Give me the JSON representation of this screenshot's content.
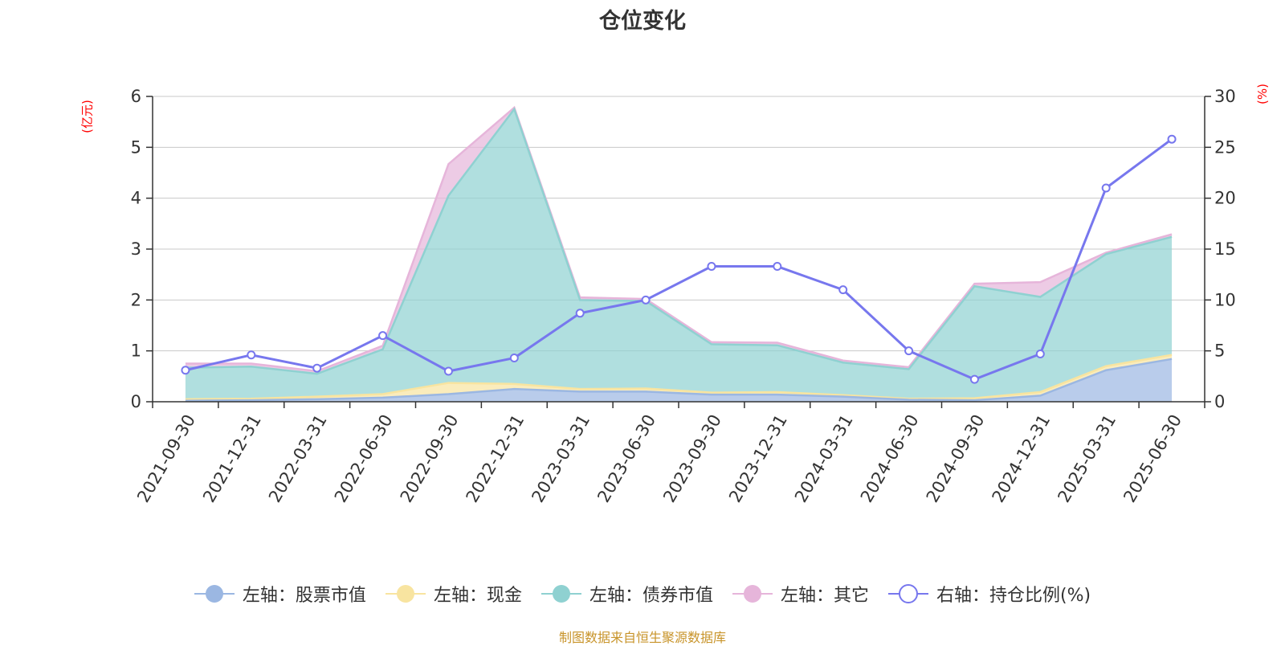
{
  "title": "仓位变化",
  "source_note": "制图数据来自恒生聚源数据库",
  "colors": {
    "stock": "#9bb7e2",
    "cash": "#f8e4a0",
    "bond": "#8fd1d1",
    "other": "#e6b5da",
    "ratio": "#7777ee",
    "axis_label": "#ff0000",
    "grid": "#c8c8c8"
  },
  "chart_data": {
    "type": "area",
    "title": "仓位变化",
    "ylabel_left": "(亿元)",
    "ylabel_right": "(%)",
    "categories": [
      "2021-09-30",
      "2021-12-31",
      "2022-03-31",
      "2022-06-30",
      "2022-09-30",
      "2022-12-31",
      "2023-03-31",
      "2023-06-30",
      "2023-09-30",
      "2023-12-31",
      "2024-03-31",
      "2024-06-30",
      "2024-09-30",
      "2024-12-31",
      "2025-03-31",
      "2025-06-30"
    ],
    "ylim_left": [
      0,
      6
    ],
    "yticks_left": [
      "0",
      "1",
      "2",
      "3",
      "4",
      "5",
      "6"
    ],
    "ylim_right": [
      0,
      30
    ],
    "yticks_right": [
      "0",
      "5",
      "10",
      "15",
      "20",
      "25",
      "30"
    ],
    "grid": true,
    "legend_position": "bottom",
    "series": [
      {
        "name": "左轴：股票市值",
        "axis": "left",
        "stacked": true,
        "values": [
          0.02,
          0.03,
          0.05,
          0.08,
          0.15,
          0.25,
          0.2,
          0.2,
          0.14,
          0.14,
          0.1,
          0.04,
          0.03,
          0.12,
          0.62,
          0.84
        ]
      },
      {
        "name": "左轴：现金",
        "axis": "left",
        "stacked": true,
        "values": [
          0.03,
          0.03,
          0.05,
          0.07,
          0.22,
          0.1,
          0.05,
          0.06,
          0.04,
          0.05,
          0.03,
          0.02,
          0.04,
          0.07,
          0.08,
          0.08
        ]
      },
      {
        "name": "左轴：债券市值",
        "axis": "left",
        "stacked": true,
        "values": [
          0.62,
          0.63,
          0.45,
          0.88,
          3.68,
          5.4,
          1.75,
          1.72,
          0.95,
          0.92,
          0.64,
          0.58,
          2.2,
          1.87,
          2.2,
          2.32
        ]
      },
      {
        "name": "左轴：其它",
        "axis": "left",
        "stacked": true,
        "values": [
          0.08,
          0.06,
          0.05,
          0.07,
          0.62,
          0.03,
          0.05,
          0.04,
          0.04,
          0.05,
          0.04,
          0.04,
          0.05,
          0.29,
          0.03,
          0.05
        ]
      },
      {
        "name": "右轴：持仓比例(%)",
        "axis": "right",
        "stacked": false,
        "values": [
          3.1,
          4.6,
          3.3,
          6.5,
          3.0,
          4.3,
          8.7,
          10.0,
          13.3,
          13.3,
          11.0,
          5.0,
          2.2,
          4.7,
          21.0,
          25.8
        ]
      }
    ]
  }
}
